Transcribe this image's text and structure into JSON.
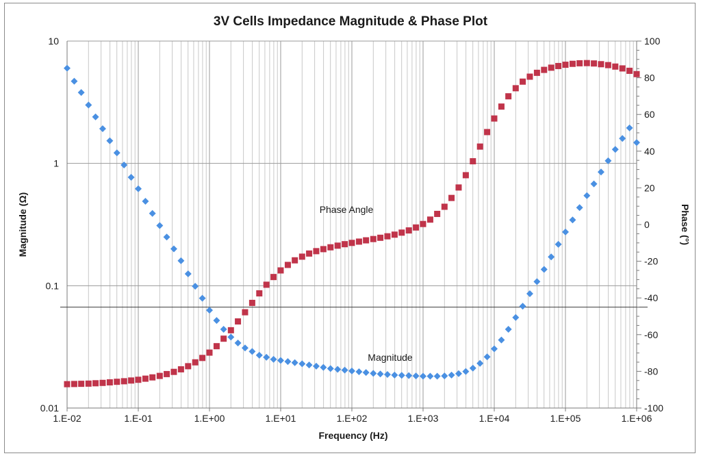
{
  "chart_data": {
    "type": "scatter",
    "title": "3V Cells Impedance Magnitude & Phase Plot",
    "xlabel": "Frequency (Hz)",
    "ylabel": "Magnitude (Ω)",
    "y2label": "Phase (°)",
    "x_scale": "log",
    "y_scale": "log",
    "xlim": [
      0.01,
      1000000
    ],
    "ylim": [
      0.01,
      10
    ],
    "y2lim": [
      -100,
      100
    ],
    "x_tick_labels": [
      "1.E-02",
      "1.E-01",
      "1.E+00",
      "1.E+01",
      "1.E+02",
      "1.E+03",
      "1.E+04",
      "1.E+05",
      "1.E+06"
    ],
    "y_tick_labels": [
      "0.01",
      "0.1",
      "1",
      "10"
    ],
    "y2_tick_labels": [
      "-100",
      "-80",
      "-60",
      "-40",
      "-20",
      "0",
      "20",
      "40",
      "60",
      "80",
      "100"
    ],
    "grid": true,
    "reference_line_phase": -45,
    "annotations": [
      "Phase Angle",
      "Magnitude"
    ],
    "colors": {
      "magnitude": "#4a90e2",
      "phase": "#c0344a"
    },
    "series": [
      {
        "axis": "y",
        "marker": "diamond",
        "x": [
          0.01,
          0.0126,
          0.0158,
          0.02,
          0.0251,
          0.0316,
          0.0398,
          0.0501,
          0.0631,
          0.0794,
          0.1,
          0.126,
          0.158,
          0.2,
          0.251,
          0.316,
          0.398,
          0.501,
          0.631,
          0.794,
          1,
          1.26,
          1.58,
          2,
          2.51,
          3.16,
          3.98,
          5.01,
          6.31,
          7.94,
          10,
          12.6,
          15.8,
          20,
          25.1,
          31.6,
          39.8,
          50.1,
          63.1,
          79.4,
          100,
          126,
          158,
          200,
          251,
          316,
          398,
          501,
          631,
          794,
          1000,
          1260,
          1580,
          2000,
          2510,
          3160,
          3980,
          5010,
          6310,
          7940,
          10000,
          12600,
          15800,
          20000,
          25100,
          31600,
          39800,
          50100,
          63100,
          79400,
          100000,
          126000,
          158000,
          200000,
          251000,
          316000,
          398000,
          501000,
          631000,
          794000,
          1000000
        ],
        "values": [
          6.0,
          4.7,
          3.8,
          3.0,
          2.4,
          1.92,
          1.53,
          1.22,
          0.97,
          0.77,
          0.62,
          0.49,
          0.39,
          0.31,
          0.25,
          0.2,
          0.16,
          0.125,
          0.099,
          0.079,
          0.063,
          0.052,
          0.044,
          0.038,
          0.034,
          0.031,
          0.029,
          0.027,
          0.026,
          0.025,
          0.0245,
          0.024,
          0.0235,
          0.023,
          0.0225,
          0.022,
          0.0215,
          0.021,
          0.0207,
          0.0204,
          0.0201,
          0.0198,
          0.0195,
          0.0192,
          0.019,
          0.0188,
          0.0186,
          0.0185,
          0.0184,
          0.0183,
          0.0182,
          0.0182,
          0.0182,
          0.0183,
          0.0186,
          0.0191,
          0.0199,
          0.0212,
          0.0232,
          0.0262,
          0.0305,
          0.036,
          0.044,
          0.055,
          0.068,
          0.086,
          0.108,
          0.136,
          0.172,
          0.218,
          0.275,
          0.345,
          0.435,
          0.545,
          0.68,
          0.85,
          1.05,
          1.3,
          1.6,
          1.95,
          1.48
        ]
      },
      {
        "axis": "y2",
        "marker": "square",
        "x": [
          0.01,
          0.0126,
          0.0158,
          0.02,
          0.0251,
          0.0316,
          0.0398,
          0.0501,
          0.0631,
          0.0794,
          0.1,
          0.126,
          0.158,
          0.2,
          0.251,
          0.316,
          0.398,
          0.501,
          0.631,
          0.794,
          1,
          1.26,
          1.58,
          2,
          2.51,
          3.16,
          3.98,
          5.01,
          6.31,
          7.94,
          10,
          12.6,
          15.8,
          20,
          25.1,
          31.6,
          39.8,
          50.1,
          63.1,
          79.4,
          100,
          126,
          158,
          200,
          251,
          316,
          398,
          501,
          631,
          794,
          1000,
          1260,
          1580,
          2000,
          2510,
          3160,
          3980,
          5010,
          6310,
          7940,
          10000,
          12600,
          15800,
          20000,
          25100,
          31600,
          39800,
          50100,
          63100,
          79400,
          100000,
          126000,
          158000,
          200000,
          251000,
          316000,
          398000,
          501000,
          631000,
          794000,
          1000000
        ],
        "values": [
          -87.0,
          -86.9,
          -86.8,
          -86.7,
          -86.5,
          -86.3,
          -86.0,
          -85.7,
          -85.4,
          -85.0,
          -84.6,
          -84.0,
          -83.3,
          -82.5,
          -81.5,
          -80.3,
          -78.9,
          -77.2,
          -75.1,
          -72.7,
          -69.8,
          -66.3,
          -62.2,
          -57.6,
          -52.8,
          -47.8,
          -42.7,
          -37.5,
          -32.8,
          -28.6,
          -25.0,
          -22.0,
          -19.5,
          -17.5,
          -15.8,
          -14.5,
          -13.4,
          -12.4,
          -11.5,
          -10.7,
          -10.0,
          -9.3,
          -8.6,
          -7.9,
          -7.2,
          -6.4,
          -5.5,
          -4.4,
          -3.2,
          -1.6,
          0.3,
          2.7,
          5.8,
          9.7,
          14.5,
          20.2,
          26.9,
          34.5,
          42.5,
          50.4,
          57.8,
          64.3,
          69.9,
          74.3,
          77.9,
          80.6,
          82.7,
          84.3,
          85.5,
          86.4,
          87.1,
          87.6,
          87.9,
          88.0,
          87.8,
          87.4,
          86.9,
          86.1,
          85.1,
          83.8,
          82.0
        ]
      }
    ]
  }
}
